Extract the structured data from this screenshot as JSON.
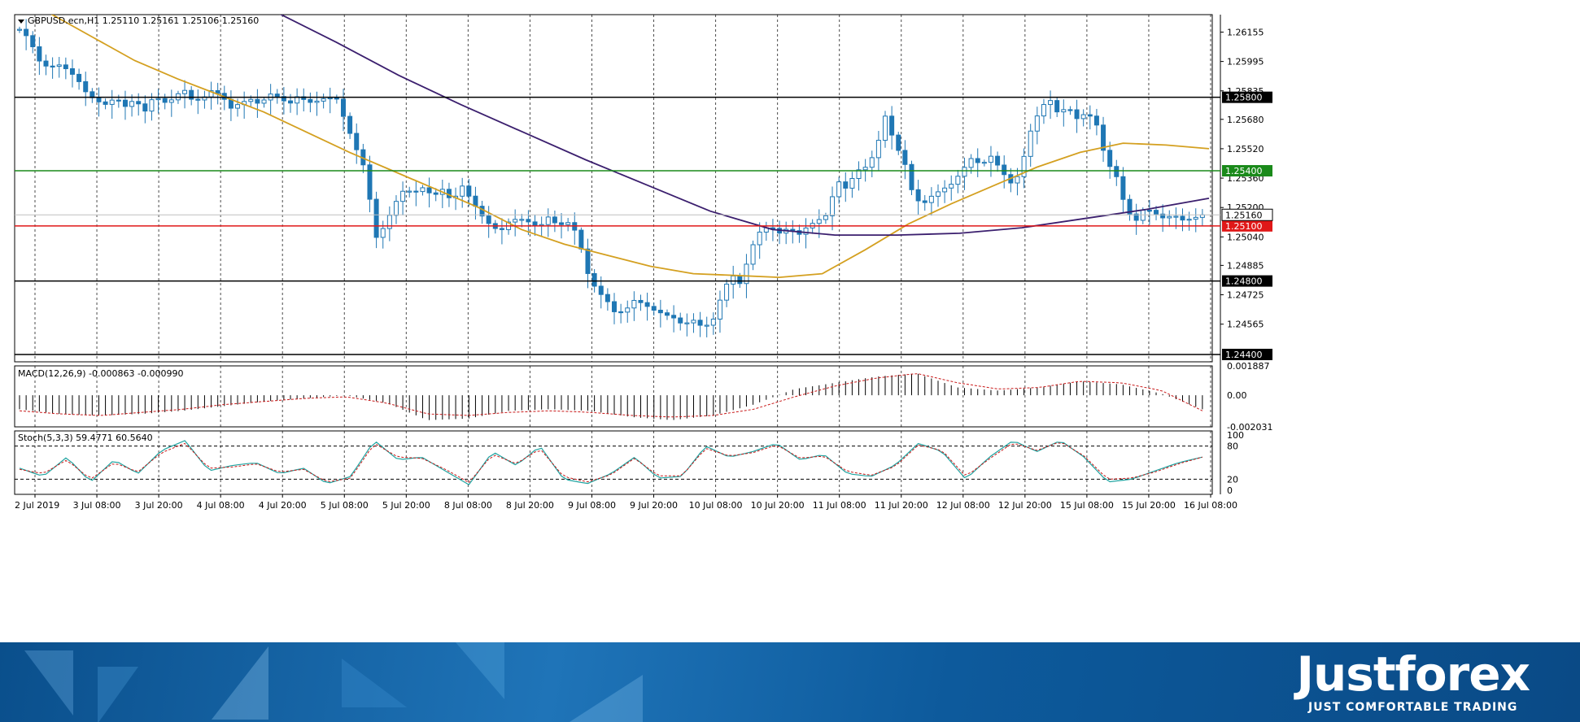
{
  "chart_data": [
    {
      "type": "candlestick",
      "symbol_header": "GBPUSD.ecn,H1  1.25110 1.25161 1.25106 1.25160",
      "ylim": [
        1.2436,
        1.2625
      ],
      "y_ticks": [
        "1.26155",
        "1.25995",
        "1.25835",
        "1.25680",
        "1.25520",
        "1.25360",
        "1.25200",
        "1.25040",
        "1.24885",
        "1.24725",
        "1.24565"
      ],
      "current_price": "1.25160",
      "horizontal_lines": [
        {
          "label": "1.25800",
          "value": 1.258,
          "color": "#000000"
        },
        {
          "label": "1.25400",
          "value": 1.254,
          "color": "#1a8a1a"
        },
        {
          "label": "1.25100",
          "value": 1.251,
          "color": "#e01818"
        },
        {
          "label": "1.24800",
          "value": 1.248,
          "color": "#000000"
        },
        {
          "label": "1.24400",
          "value": 1.244,
          "color": "#000000"
        }
      ],
      "price_path": [
        1.2617,
        1.2612,
        1.26,
        1.2596,
        1.2598,
        1.2595,
        1.259,
        1.2582,
        1.2578,
        1.2576,
        1.258,
        1.2575,
        1.2579,
        1.2572,
        1.2581,
        1.2577,
        1.2579,
        1.2585,
        1.2578,
        1.2579,
        1.2584,
        1.2581,
        1.2574,
        1.2577,
        1.2579,
        1.2576,
        1.2582,
        1.258,
        1.2576,
        1.2581,
        1.2577,
        1.2578,
        1.258,
        1.2579,
        1.2565,
        1.2552,
        1.254,
        1.2503,
        1.251,
        1.2522,
        1.253,
        1.2528,
        1.2531,
        1.2526,
        1.253,
        1.2523,
        1.2532,
        1.2524,
        1.2516,
        1.251,
        1.2507,
        1.2513,
        1.2514,
        1.2512,
        1.2509,
        1.2515,
        1.251,
        1.2512,
        1.2506,
        1.2485,
        1.2475,
        1.247,
        1.2462,
        1.2464,
        1.247,
        1.2467,
        1.2464,
        1.2462,
        1.246,
        1.2456,
        1.2459,
        1.2455,
        1.2457,
        1.2472,
        1.2484,
        1.2478,
        1.2497,
        1.2507,
        1.251,
        1.2506,
        1.2509,
        1.2505,
        1.251,
        1.2513,
        1.2516,
        1.2535,
        1.253,
        1.254,
        1.2542,
        1.255,
        1.257,
        1.2555,
        1.2545,
        1.2525,
        1.2522,
        1.2527,
        1.253,
        1.2533,
        1.254,
        1.2547,
        1.2543,
        1.2548,
        1.2541,
        1.2533,
        1.2538,
        1.256,
        1.2572,
        1.258,
        1.2571,
        1.2575,
        1.2568,
        1.2572,
        1.2565,
        1.2545,
        1.2538,
        1.252,
        1.2512,
        1.252,
        1.2517,
        1.2514,
        1.2516,
        1.2513,
        1.2514,
        1.2516
      ],
      "ma_fast_path": [
        1.2626,
        1.2613,
        1.26,
        1.259,
        1.2581,
        1.2572,
        1.2561,
        1.255,
        1.254,
        1.253,
        1.252,
        1.2508,
        1.25,
        1.2494,
        1.2488,
        1.2484,
        1.2483,
        1.2482,
        1.2484,
        1.2497,
        1.2511,
        1.2522,
        1.2532,
        1.2542,
        1.255,
        1.2555,
        1.2554,
        1.2552
      ],
      "ma_slow_path": [
        1.2645,
        1.2627,
        1.261,
        1.2592,
        1.2576,
        1.2561,
        1.2546,
        1.2532,
        1.2518,
        1.2508,
        1.2505,
        1.2505,
        1.2506,
        1.2509,
        1.2514,
        1.2519,
        1.2525
      ],
      "x_ticks": [
        "2 Jul 2019",
        "3 Jul 08:00",
        "3 Jul 20:00",
        "4 Jul 08:00",
        "4 Jul 20:00",
        "5 Jul 08:00",
        "5 Jul 20:00",
        "8 Jul 08:00",
        "8 Jul 20:00",
        "9 Jul 08:00",
        "9 Jul 20:00",
        "10 Jul 08:00",
        "10 Jul 20:00",
        "11 Jul 08:00",
        "11 Jul 20:00",
        "12 Jul 08:00",
        "12 Jul 20:00",
        "15 Jul 08:00",
        "15 Jul 20:00",
        "16 Jul 08:00"
      ],
      "colors": {
        "candle": "#1f77b4",
        "ma_fast": "#d4a020",
        "ma_slow": "#3b1f6e",
        "grid": "#000000"
      }
    },
    {
      "type": "histogram",
      "title": "MACD(12,26,9) -0.000863 -0.000990",
      "ylim": [
        -0.002031,
        0.001887
      ],
      "y_ticks": [
        "0.001887",
        "0.00",
        "-0.002031"
      ],
      "histogram": [
        -0.0009,
        -0.0012,
        -0.0013,
        -0.0012,
        -0.001,
        -0.0007,
        -0.0004,
        -0.0002,
        0.0,
        -0.0005,
        -0.0016,
        -0.0015,
        -0.001,
        -0.0009,
        -0.001,
        -0.0014,
        -0.0016,
        -0.0013,
        -0.0006,
        0.0004,
        0.0008,
        0.0012,
        0.0014,
        0.0005,
        0.0003,
        0.0005,
        0.0009,
        0.0007,
        0.0001,
        -0.0009
      ],
      "signal": [
        -0.001,
        -0.0012,
        -0.0013,
        -0.0011,
        -0.0009,
        -0.0006,
        -0.0004,
        -0.0002,
        -0.0001,
        -0.0005,
        -0.0012,
        -0.0013,
        -0.0011,
        -0.001,
        -0.0011,
        -0.0013,
        -0.0014,
        -0.0013,
        -0.0009,
        -0.0001,
        0.0006,
        0.0011,
        0.0014,
        0.0008,
        0.0004,
        0.0005,
        0.0009,
        0.0008,
        0.0003,
        -0.001
      ],
      "colors": {
        "bars": "#000000",
        "signal": "#c81818"
      }
    },
    {
      "type": "line",
      "title": "Stoch(5,3,3) 59.4771 60.5640",
      "ylim": [
        0,
        100
      ],
      "y_ticks": [
        "100",
        "80",
        "20",
        "0"
      ],
      "levels": [
        80,
        20
      ],
      "main": [
        40,
        25,
        60,
        15,
        55,
        30,
        72,
        90,
        35,
        45,
        50,
        30,
        40,
        12,
        25,
        90,
        55,
        60,
        35,
        10,
        70,
        45,
        80,
        20,
        12,
        30,
        60,
        22,
        25,
        80,
        60,
        70,
        85,
        55,
        65,
        30,
        25,
        45,
        85,
        70,
        20,
        60,
        90,
        70,
        90,
        60,
        15,
        20,
        35,
        50,
        60
      ],
      "signal": [
        38,
        30,
        55,
        20,
        50,
        33,
        68,
        85,
        40,
        42,
        48,
        33,
        38,
        15,
        22,
        85,
        60,
        58,
        38,
        14,
        65,
        48,
        75,
        25,
        15,
        28,
        58,
        26,
        26,
        76,
        62,
        68,
        82,
        58,
        62,
        34,
        27,
        43,
        82,
        72,
        25,
        57,
        86,
        72,
        88,
        62,
        20,
        22,
        33,
        48,
        60
      ],
      "colors": {
        "main": "#1fa3a0",
        "signal": "#c81818"
      }
    }
  ],
  "branding": {
    "name": "Justforex",
    "slogan": "JUST COMFORTABLE TRADING"
  }
}
